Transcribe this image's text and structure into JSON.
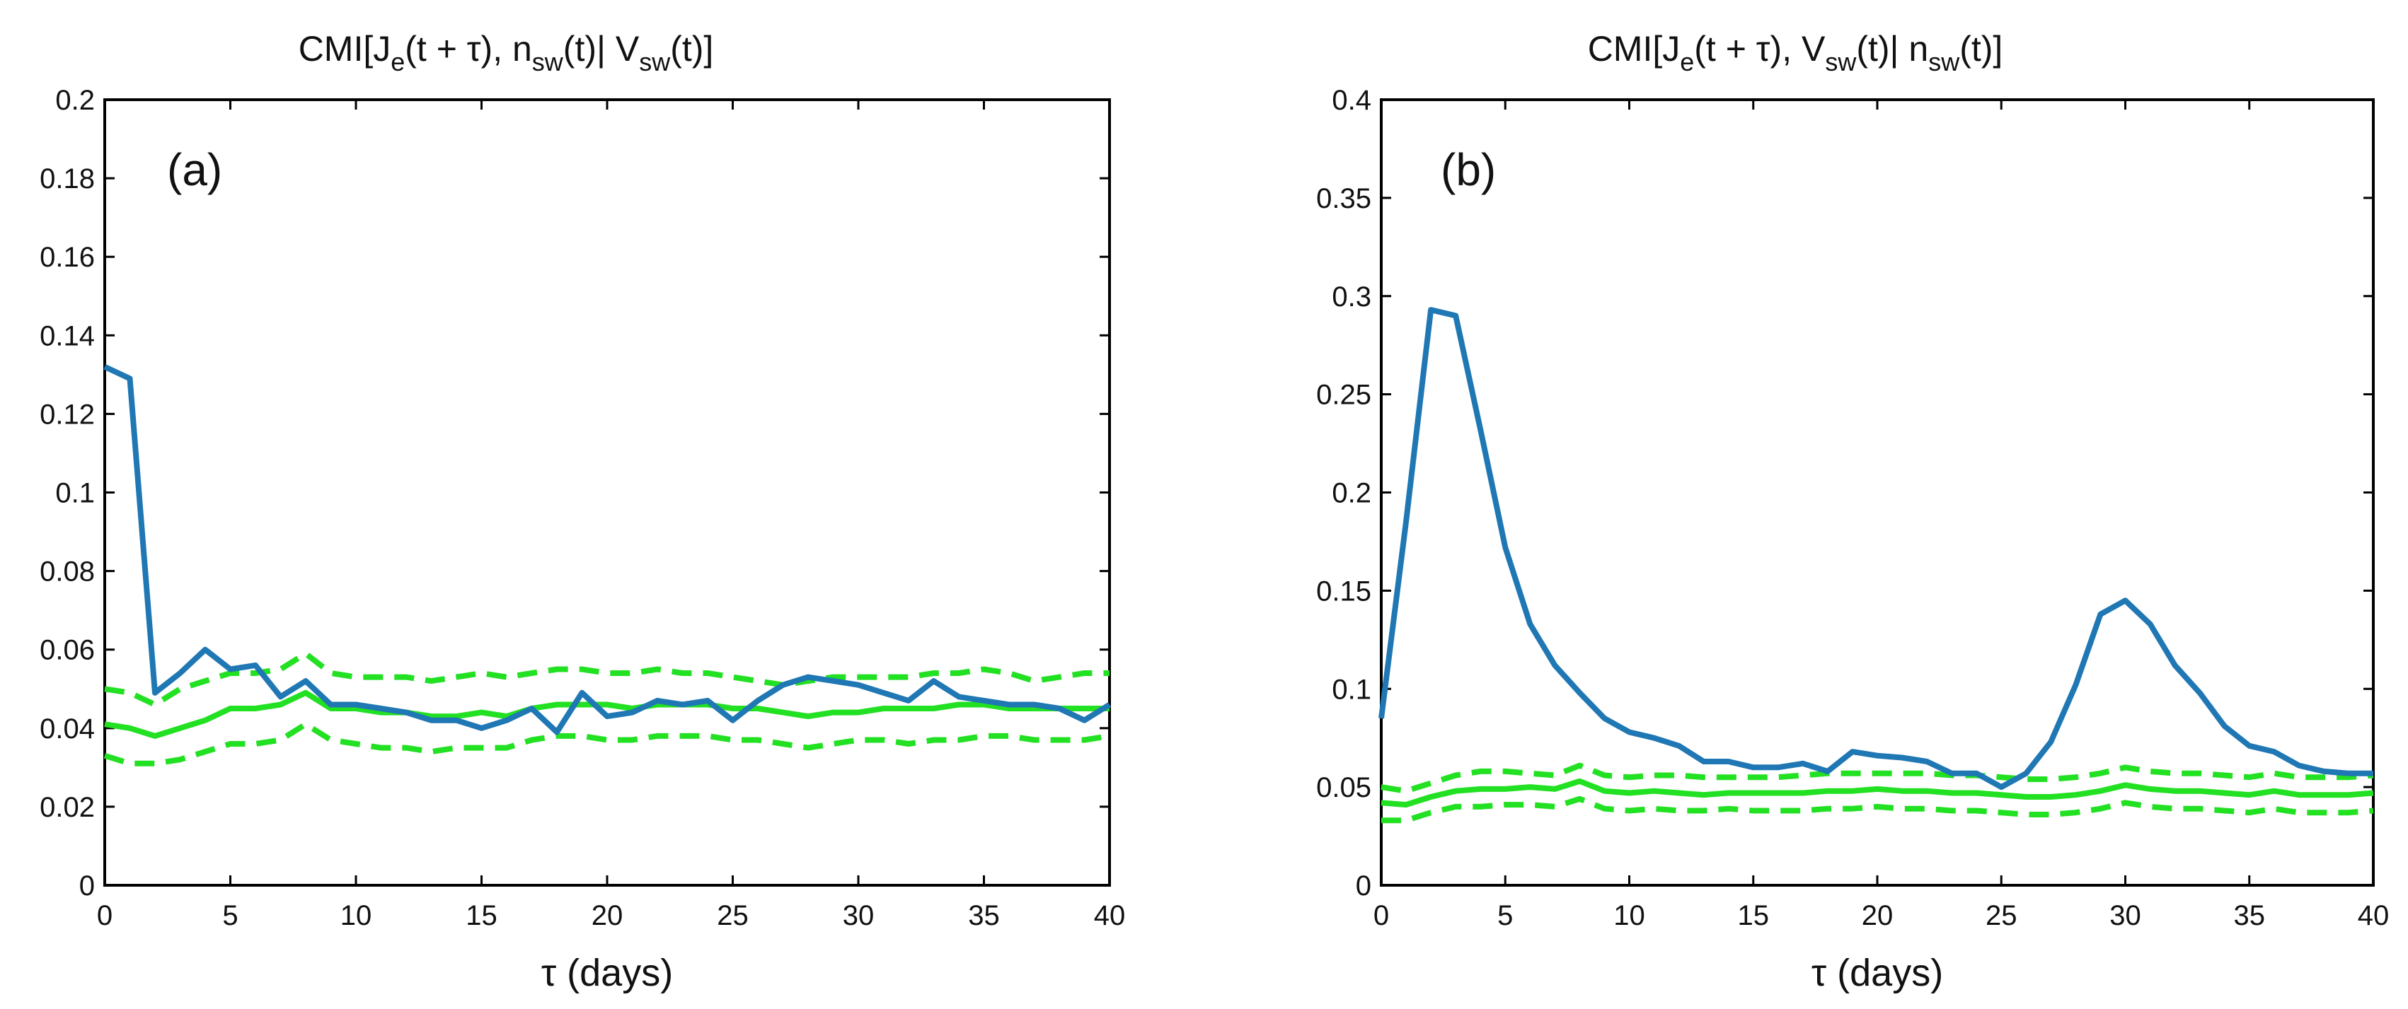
{
  "figure": {
    "colors": {
      "cmi": "#1f77b4",
      "surrogate": "#22e022",
      "axes": "#000000"
    }
  },
  "chart_data": [
    {
      "type": "line",
      "panel": "(a)",
      "title_parts": {
        "prefix": "CMI[J",
        "sub1": "e",
        "mid1": "(t + τ), n",
        "sub2": "sw",
        "mid2": "(t)| V",
        "sub3": "sw",
        "suffix": "(t)]"
      },
      "xlabel": "τ (days)",
      "ylabel": "",
      "xlim": [
        0,
        40
      ],
      "ylim": [
        0,
        0.2
      ],
      "xticks": [
        0,
        5,
        10,
        15,
        20,
        25,
        30,
        35,
        40
      ],
      "yticks": [
        0,
        0.02,
        0.04,
        0.06,
        0.08,
        0.1,
        0.12,
        0.14,
        0.16,
        0.18,
        0.2
      ],
      "ytick_labels": [
        "0",
        "0.02",
        "0.04",
        "0.06",
        "0.08",
        "0.1",
        "0.12",
        "0.14",
        "0.16",
        "0.18",
        "0.2"
      ],
      "grid": false,
      "x": [
        0,
        1,
        2,
        3,
        4,
        5,
        6,
        7,
        8,
        9,
        10,
        11,
        12,
        13,
        14,
        15,
        16,
        17,
        18,
        19,
        20,
        21,
        22,
        23,
        24,
        25,
        26,
        27,
        28,
        29,
        30,
        31,
        32,
        33,
        34,
        35,
        36,
        37,
        38,
        39,
        40
      ],
      "series": [
        {
          "style": "solid-blue",
          "values": [
            0.132,
            0.129,
            0.049,
            0.054,
            0.06,
            0.055,
            0.056,
            0.048,
            0.052,
            0.046,
            0.046,
            0.045,
            0.044,
            0.042,
            0.042,
            0.04,
            0.042,
            0.045,
            0.039,
            0.049,
            0.043,
            0.044,
            0.047,
            0.046,
            0.047,
            0.042,
            0.047,
            0.051,
            0.053,
            0.052,
            0.051,
            0.049,
            0.047,
            0.052,
            0.048,
            0.047,
            0.046,
            0.046,
            0.045,
            0.042,
            0.046
          ]
        },
        {
          "style": "solid-green",
          "values": [
            0.041,
            0.04,
            0.038,
            0.04,
            0.042,
            0.045,
            0.045,
            0.046,
            0.049,
            0.045,
            0.045,
            0.044,
            0.044,
            0.043,
            0.043,
            0.044,
            0.043,
            0.045,
            0.046,
            0.046,
            0.046,
            0.045,
            0.046,
            0.046,
            0.046,
            0.045,
            0.045,
            0.044,
            0.043,
            0.044,
            0.044,
            0.045,
            0.045,
            0.045,
            0.046,
            0.046,
            0.045,
            0.045,
            0.045,
            0.045,
            0.045
          ]
        },
        {
          "style": "dashed-green",
          "values": [
            0.05,
            0.049,
            0.046,
            0.05,
            0.052,
            0.054,
            0.054,
            0.055,
            0.059,
            0.054,
            0.053,
            0.053,
            0.053,
            0.052,
            0.053,
            0.054,
            0.053,
            0.054,
            0.055,
            0.055,
            0.054,
            0.054,
            0.055,
            0.054,
            0.054,
            0.053,
            0.052,
            0.051,
            0.052,
            0.053,
            0.053,
            0.053,
            0.053,
            0.054,
            0.054,
            0.055,
            0.054,
            0.052,
            0.053,
            0.054,
            0.054
          ]
        },
        {
          "style": "dashed-green",
          "values": [
            0.033,
            0.031,
            0.031,
            0.032,
            0.034,
            0.036,
            0.036,
            0.037,
            0.041,
            0.037,
            0.036,
            0.035,
            0.035,
            0.034,
            0.035,
            0.035,
            0.035,
            0.037,
            0.038,
            0.038,
            0.037,
            0.037,
            0.038,
            0.038,
            0.038,
            0.037,
            0.037,
            0.036,
            0.035,
            0.036,
            0.037,
            0.037,
            0.036,
            0.037,
            0.037,
            0.038,
            0.038,
            0.037,
            0.037,
            0.037,
            0.038
          ]
        }
      ]
    },
    {
      "type": "line",
      "panel": "(b)",
      "title_parts": {
        "prefix": "CMI[J",
        "sub1": "e",
        "mid1": "(t + τ), V",
        "sub2": "sw",
        "mid2": "(t)| n",
        "sub3": "sw",
        "suffix": "(t)]"
      },
      "xlabel": "τ (days)",
      "ylabel": "",
      "xlim": [
        0,
        40
      ],
      "ylim": [
        0,
        0.4
      ],
      "xticks": [
        0,
        5,
        10,
        15,
        20,
        25,
        30,
        35,
        40
      ],
      "yticks": [
        0,
        0.05,
        0.1,
        0.15,
        0.2,
        0.25,
        0.3,
        0.35,
        0.4
      ],
      "ytick_labels": [
        "0",
        "0.05",
        "0.1",
        "0.15",
        "0.2",
        "0.25",
        "0.3",
        "0.35",
        "0.4"
      ],
      "grid": false,
      "x": [
        0,
        1,
        2,
        3,
        4,
        5,
        6,
        7,
        8,
        9,
        10,
        11,
        12,
        13,
        14,
        15,
        16,
        17,
        18,
        19,
        20,
        21,
        22,
        23,
        24,
        25,
        26,
        27,
        28,
        29,
        30,
        31,
        32,
        33,
        34,
        35,
        36,
        37,
        38,
        39,
        40
      ],
      "series": [
        {
          "style": "solid-blue",
          "values": [
            0.085,
            0.185,
            0.293,
            0.29,
            0.232,
            0.172,
            0.133,
            0.112,
            0.098,
            0.085,
            0.078,
            0.075,
            0.071,
            0.063,
            0.063,
            0.06,
            0.06,
            0.062,
            0.058,
            0.068,
            0.066,
            0.065,
            0.063,
            0.057,
            0.057,
            0.05,
            0.057,
            0.073,
            0.102,
            0.138,
            0.145,
            0.133,
            0.112,
            0.098,
            0.081,
            0.071,
            0.068,
            0.061,
            0.058,
            0.057,
            0.057
          ]
        },
        {
          "style": "solid-green",
          "values": [
            0.042,
            0.041,
            0.045,
            0.048,
            0.049,
            0.049,
            0.05,
            0.049,
            0.053,
            0.048,
            0.047,
            0.048,
            0.047,
            0.046,
            0.047,
            0.047,
            0.047,
            0.047,
            0.048,
            0.048,
            0.049,
            0.048,
            0.048,
            0.047,
            0.047,
            0.046,
            0.045,
            0.045,
            0.046,
            0.048,
            0.051,
            0.049,
            0.048,
            0.048,
            0.047,
            0.046,
            0.048,
            0.046,
            0.046,
            0.046,
            0.047
          ]
        },
        {
          "style": "dashed-green",
          "values": [
            0.05,
            0.048,
            0.052,
            0.056,
            0.058,
            0.058,
            0.057,
            0.056,
            0.061,
            0.056,
            0.055,
            0.056,
            0.056,
            0.055,
            0.055,
            0.055,
            0.055,
            0.056,
            0.057,
            0.057,
            0.057,
            0.057,
            0.057,
            0.056,
            0.056,
            0.055,
            0.054,
            0.054,
            0.055,
            0.057,
            0.06,
            0.058,
            0.057,
            0.057,
            0.056,
            0.055,
            0.057,
            0.055,
            0.055,
            0.055,
            0.056
          ]
        },
        {
          "style": "dashed-green",
          "values": [
            0.033,
            0.033,
            0.037,
            0.04,
            0.04,
            0.041,
            0.041,
            0.04,
            0.044,
            0.039,
            0.038,
            0.039,
            0.038,
            0.038,
            0.039,
            0.038,
            0.038,
            0.038,
            0.039,
            0.039,
            0.04,
            0.039,
            0.039,
            0.038,
            0.038,
            0.037,
            0.036,
            0.036,
            0.037,
            0.039,
            0.042,
            0.04,
            0.039,
            0.039,
            0.038,
            0.037,
            0.039,
            0.037,
            0.037,
            0.037,
            0.038
          ]
        }
      ]
    }
  ]
}
